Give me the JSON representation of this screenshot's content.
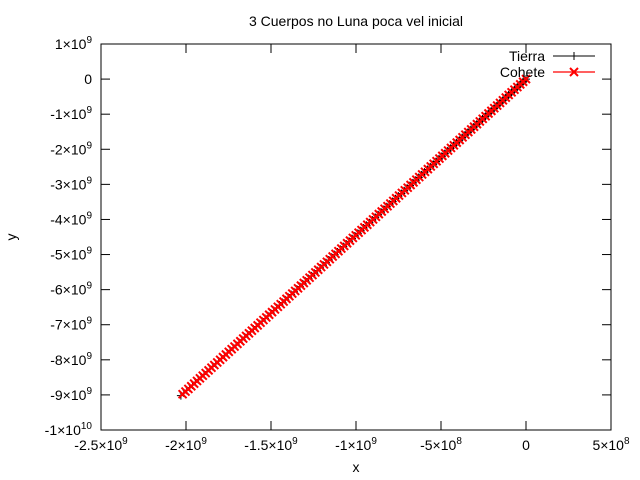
{
  "chart_data": {
    "type": "scatter",
    "title": "3 Cuerpos no Luna poca vel inicial",
    "xlabel": "x",
    "ylabel": "y",
    "xlim": [
      -2500000000,
      500000000
    ],
    "ylim": [
      -10000000000,
      1000000000
    ],
    "x_ticks": [
      {
        "value": -2500000000,
        "mant": "-2.5×10",
        "exp": "9"
      },
      {
        "value": -2000000000,
        "mant": "-2×10",
        "exp": "9"
      },
      {
        "value": -1500000000,
        "mant": "-1.5×10",
        "exp": "9"
      },
      {
        "value": -1000000000,
        "mant": "-1×10",
        "exp": "9"
      },
      {
        "value": -500000000,
        "mant": "-5×10",
        "exp": "8"
      },
      {
        "value": 0,
        "mant": "0",
        "exp": ""
      },
      {
        "value": 500000000,
        "mant": "5×10",
        "exp": "8"
      }
    ],
    "y_ticks": [
      {
        "value": 1000000000,
        "mant": "1×10",
        "exp": "9"
      },
      {
        "value": 0,
        "mant": "0",
        "exp": ""
      },
      {
        "value": -1000000000,
        "mant": "-1×10",
        "exp": "9"
      },
      {
        "value": -2000000000,
        "mant": "-2×10",
        "exp": "9"
      },
      {
        "value": -3000000000,
        "mant": "-3×10",
        "exp": "9"
      },
      {
        "value": -4000000000,
        "mant": "-4×10",
        "exp": "9"
      },
      {
        "value": -5000000000,
        "mant": "-5×10",
        "exp": "9"
      },
      {
        "value": -6000000000,
        "mant": "-6×10",
        "exp": "9"
      },
      {
        "value": -7000000000,
        "mant": "-7×10",
        "exp": "9"
      },
      {
        "value": -8000000000,
        "mant": "-8×10",
        "exp": "9"
      },
      {
        "value": -9000000000,
        "mant": "-9×10",
        "exp": "9"
      },
      {
        "value": -10000000000,
        "mant": "-1×10",
        "exp": "10"
      }
    ],
    "legend_position": "top-right",
    "grid": false,
    "series": [
      {
        "name": "Tierra",
        "color": "#000000",
        "marker": "plus",
        "line": true,
        "x_start": 0,
        "y_start": 0,
        "x_end": -2030000000,
        "y_end": -9020000000,
        "points": 120
      },
      {
        "name": "Cohete",
        "color": "#ff0000",
        "marker": "cross",
        "line": true,
        "x_start": 0,
        "y_start": 0,
        "x_end": -2020000000,
        "y_end": -8980000000,
        "points": 120
      }
    ]
  }
}
